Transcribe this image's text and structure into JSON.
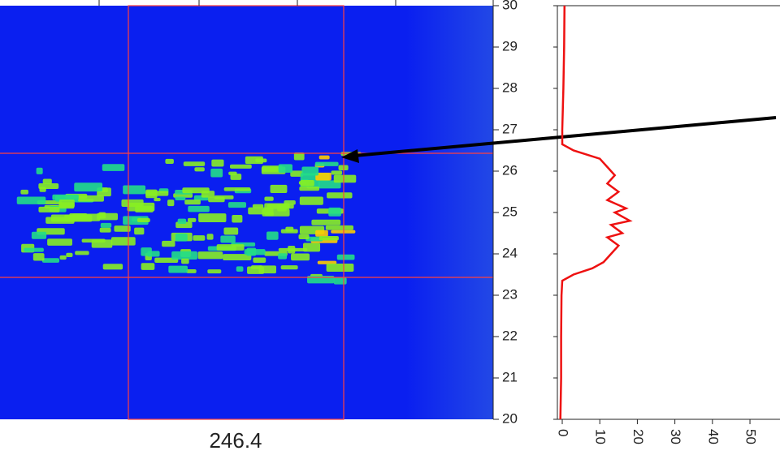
{
  "chart_data": [
    {
      "type": "heatmap",
      "ylim": [
        20,
        30
      ],
      "yticks": [
        20,
        21,
        22,
        23,
        24,
        25,
        26,
        27,
        28,
        29,
        30
      ],
      "annotation": "246.4"
    },
    {
      "type": "line",
      "color": "#ee1111",
      "xlim": [
        -1.3,
        58
      ],
      "xticks": [
        0,
        10,
        20,
        30,
        40,
        50
      ],
      "ylim": [
        20,
        30
      ],
      "y": [
        20,
        21,
        22,
        23,
        23.35,
        23.5,
        23.65,
        23.8,
        24,
        24.2,
        24.4,
        24.5,
        24.7,
        24.8,
        25,
        25.1,
        25.3,
        25.5,
        25.7,
        25.9,
        26.1,
        26.3,
        26.5,
        26.65,
        27,
        28,
        29,
        30
      ],
      "values": [
        -0.5,
        -0.3,
        -0.3,
        -0.2,
        0,
        3,
        8,
        11,
        13,
        15,
        12,
        16,
        13,
        18,
        14,
        17,
        12,
        15,
        12,
        14,
        12,
        10,
        3,
        0,
        0,
        0.3,
        0.5,
        0.6
      ]
    }
  ]
}
